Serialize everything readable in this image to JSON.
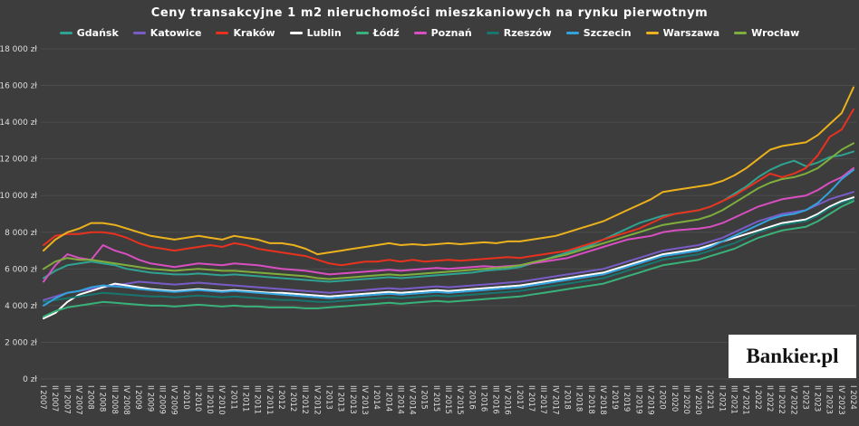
{
  "title": "Ceny transakcyjne 1 m2 nieruchomości mieszkaniowych na rynku pierwotnym",
  "branding": {
    "logo_text": "Bankier.pl"
  },
  "style": {
    "background": "#3d3d3d",
    "grid_color": "#4d4d4d",
    "axis_text_color": "#dedede"
  },
  "chart_data": {
    "type": "line",
    "title": "Ceny transakcyjne 1 m2 nieruchomości mieszkaniowych na rynku pierwotnym",
    "y_unit": "zł",
    "ylim": [
      0,
      18000
    ],
    "ytick_step": 2000,
    "ytick_labels": [
      "0 zł",
      "2 000 zł",
      "4 000 zł",
      "6 000 zł",
      "8 000 zł",
      "10 000 zł",
      "12 000 zł",
      "14 000 zł",
      "16 000 zł",
      "18 000 zł"
    ],
    "legend_position": "top",
    "grid": true,
    "categories": [
      "I 2007",
      "II 2007",
      "III 2007",
      "IV 2007",
      "I 2008",
      "II 2008",
      "III 2008",
      "IV 2008",
      "I 2009",
      "II 2009",
      "III 2009",
      "IV 2009",
      "I 2010",
      "II 2010",
      "III 2010",
      "IV 2010",
      "I 2011",
      "II 2011",
      "III 2011",
      "IV 2011",
      "I 2012",
      "II 2012",
      "III 2012",
      "IV 2012",
      "I 2013",
      "II 2013",
      "III 2013",
      "IV 2013",
      "I 2014",
      "II 2014",
      "III 2014",
      "IV 2014",
      "I 2015",
      "II 2015",
      "III 2015",
      "IV 2015",
      "I 2016",
      "II 2016",
      "III 2016",
      "IV 2016",
      "I 2017",
      "II 2017",
      "III 2017",
      "IV 2017",
      "I 2018",
      "II 2018",
      "III 2018",
      "IV 2018",
      "I 2019",
      "II 2019",
      "III 2019",
      "IV 2019",
      "I 2020",
      "II 2020",
      "III 2020",
      "IV 2020",
      "I 2021",
      "II 2021",
      "III 2021",
      "IV 2021",
      "I 2022",
      "II 2022",
      "III 2022",
      "IV 2022",
      "I 2023",
      "II 2023",
      "III 2023",
      "IV 2023",
      "I 2024"
    ],
    "series": [
      {
        "name": "Gdańsk",
        "color": "#2fa392",
        "values": [
          5500,
          5900,
          6200,
          6300,
          6400,
          6300,
          6200,
          6000,
          5900,
          5800,
          5750,
          5700,
          5700,
          5750,
          5700,
          5650,
          5700,
          5650,
          5600,
          5550,
          5500,
          5450,
          5400,
          5350,
          5300,
          5350,
          5400,
          5450,
          5500,
          5550,
          5500,
          5550,
          5600,
          5650,
          5700,
          5750,
          5800,
          5900,
          5950,
          6000,
          6100,
          6300,
          6500,
          6700,
          6900,
          7100,
          7300,
          7600,
          7900,
          8200,
          8500,
          8700,
          8900,
          9000,
          9100,
          9200,
          9400,
          9700,
          10100,
          10500,
          11000,
          11400,
          11700,
          11900,
          11600,
          11800,
          12100,
          12200,
          12400
        ]
      },
      {
        "name": "Katowice",
        "color": "#7a5cc9",
        "values": [
          4300,
          4500,
          4700,
          4800,
          4900,
          5000,
          5100,
          5200,
          5300,
          5250,
          5200,
          5150,
          5200,
          5250,
          5200,
          5150,
          5100,
          5050,
          5000,
          4950,
          4900,
          4850,
          4800,
          4750,
          4700,
          4750,
          4800,
          4850,
          4900,
          4950,
          4900,
          4950,
          5000,
          5050,
          5000,
          5050,
          5100,
          5150,
          5200,
          5250,
          5300,
          5400,
          5500,
          5600,
          5700,
          5800,
          5900,
          6000,
          6200,
          6400,
          6600,
          6800,
          7000,
          7100,
          7200,
          7300,
          7500,
          7700,
          8000,
          8300,
          8600,
          8800,
          9000,
          9100,
          9200,
          9500,
          9800,
          10000,
          10200
        ]
      },
      {
        "name": "Kraków",
        "color": "#e8321e",
        "values": [
          7300,
          7800,
          7900,
          7900,
          8000,
          8000,
          7900,
          7700,
          7400,
          7200,
          7100,
          7000,
          7100,
          7200,
          7300,
          7200,
          7400,
          7300,
          7100,
          7000,
          6900,
          6800,
          6700,
          6500,
          6300,
          6200,
          6300,
          6400,
          6400,
          6500,
          6400,
          6500,
          6400,
          6450,
          6500,
          6450,
          6500,
          6550,
          6600,
          6650,
          6600,
          6700,
          6800,
          6900,
          7000,
          7200,
          7400,
          7600,
          7800,
          8000,
          8200,
          8500,
          8800,
          9000,
          9100,
          9200,
          9400,
          9700,
          10000,
          10400,
          10800,
          11200,
          11000,
          11200,
          11500,
          12200,
          13200,
          13600,
          14700
        ]
      },
      {
        "name": "Lublin",
        "color": "#ffffff",
        "values": [
          3300,
          3600,
          4200,
          4600,
          4800,
          5000,
          5200,
          5100,
          5000,
          4900,
          4850,
          4800,
          4850,
          4900,
          4850,
          4800,
          4850,
          4800,
          4750,
          4700,
          4700,
          4650,
          4600,
          4550,
          4500,
          4550,
          4600,
          4650,
          4700,
          4750,
          4700,
          4750,
          4800,
          4850,
          4800,
          4850,
          4900,
          4950,
          5000,
          5050,
          5100,
          5200,
          5300,
          5400,
          5500,
          5600,
          5700,
          5800,
          6000,
          6200,
          6400,
          6600,
          6800,
          6900,
          7000,
          7100,
          7300,
          7500,
          7700,
          7900,
          8100,
          8300,
          8500,
          8600,
          8700,
          9000,
          9400,
          9700,
          9900
        ]
      },
      {
        "name": "Łódź",
        "color": "#39b27a",
        "values": [
          3400,
          3700,
          3900,
          4000,
          4100,
          4200,
          4150,
          4100,
          4050,
          4000,
          4000,
          3950,
          4000,
          4050,
          4000,
          3950,
          4000,
          3950,
          3950,
          3900,
          3900,
          3900,
          3850,
          3850,
          3900,
          3950,
          4000,
          4050,
          4100,
          4150,
          4100,
          4150,
          4200,
          4250,
          4200,
          4250,
          4300,
          4350,
          4400,
          4450,
          4500,
          4600,
          4700,
          4800,
          4900,
          5000,
          5100,
          5200,
          5400,
          5600,
          5800,
          6000,
          6200,
          6300,
          6400,
          6500,
          6700,
          6900,
          7100,
          7400,
          7700,
          7900,
          8100,
          8200,
          8300,
          8600,
          9000,
          9400,
          9700
        ]
      },
      {
        "name": "Poznań",
        "color": "#d94fc2",
        "values": [
          5300,
          6200,
          6800,
          6600,
          6500,
          7300,
          7000,
          6800,
          6500,
          6300,
          6200,
          6100,
          6200,
          6300,
          6250,
          6200,
          6300,
          6250,
          6200,
          6100,
          6000,
          5950,
          5900,
          5800,
          5700,
          5750,
          5800,
          5850,
          5900,
          5950,
          5900,
          5950,
          6000,
          6050,
          6000,
          6050,
          6100,
          6150,
          6100,
          6150,
          6200,
          6300,
          6400,
          6500,
          6600,
          6800,
          7000,
          7200,
          7400,
          7600,
          7700,
          7800,
          8000,
          8100,
          8150,
          8200,
          8300,
          8500,
          8800,
          9100,
          9400,
          9600,
          9800,
          9900,
          10000,
          10300,
          10700,
          11000,
          11500
        ]
      },
      {
        "name": "Rzeszów",
        "color": "#17766e",
        "values": [
          4200,
          4300,
          4400,
          4500,
          4600,
          4700,
          4650,
          4600,
          4550,
          4500,
          4500,
          4450,
          4500,
          4550,
          4500,
          4450,
          4500,
          4450,
          4400,
          4350,
          4300,
          4300,
          4250,
          4200,
          4200,
          4250,
          4300,
          4350,
          4400,
          4450,
          4400,
          4450,
          4500,
          4550,
          4500,
          4550,
          4600,
          4650,
          4700,
          4750,
          4800,
          4900,
          5000,
          5100,
          5200,
          5300,
          5400,
          5500,
          5700,
          5900,
          6100,
          6300,
          6500,
          6600,
          6700,
          6800,
          7000,
          7200,
          7400,
          7700,
          8000,
          8200,
          8400,
          8500,
          8600,
          8900,
          9300,
          9600,
          9800
        ]
      },
      {
        "name": "Szczecin",
        "color": "#33a3dc",
        "values": [
          4000,
          4400,
          4700,
          4800,
          5000,
          5100,
          5050,
          5000,
          4900,
          4850,
          4800,
          4750,
          4800,
          4850,
          4800,
          4750,
          4800,
          4750,
          4700,
          4650,
          4600,
          4550,
          4500,
          4450,
          4400,
          4450,
          4500,
          4550,
          4600,
          4650,
          4600,
          4650,
          4700,
          4750,
          4700,
          4750,
          4800,
          4850,
          4900,
          4950,
          5000,
          5100,
          5200,
          5300,
          5400,
          5500,
          5600,
          5700,
          5900,
          6100,
          6300,
          6500,
          6700,
          6800,
          6900,
          7000,
          7200,
          7500,
          7800,
          8100,
          8400,
          8700,
          8900,
          9000,
          9200,
          9600,
          10200,
          10900,
          11400
        ]
      },
      {
        "name": "Warszawa",
        "color": "#ecb21d",
        "values": [
          7000,
          7600,
          8000,
          8200,
          8500,
          8500,
          8400,
          8200,
          8000,
          7800,
          7700,
          7600,
          7700,
          7800,
          7700,
          7600,
          7800,
          7700,
          7600,
          7400,
          7400,
          7300,
          7100,
          6800,
          6900,
          7000,
          7100,
          7200,
          7300,
          7400,
          7300,
          7350,
          7300,
          7350,
          7400,
          7350,
          7400,
          7450,
          7400,
          7500,
          7500,
          7600,
          7700,
          7800,
          8000,
          8200,
          8400,
          8600,
          8900,
          9200,
          9500,
          9800,
          10200,
          10300,
          10400,
          10500,
          10600,
          10800,
          11100,
          11500,
          12000,
          12500,
          12700,
          12800,
          12900,
          13300,
          13900,
          14500,
          15900
        ]
      },
      {
        "name": "Wrocław",
        "color": "#7fae3d",
        "values": [
          6000,
          6400,
          6600,
          6500,
          6500,
          6400,
          6300,
          6200,
          6100,
          6000,
          5950,
          5900,
          5950,
          6000,
          5950,
          5900,
          5900,
          5850,
          5800,
          5750,
          5700,
          5650,
          5600,
          5500,
          5450,
          5500,
          5550,
          5600,
          5650,
          5700,
          5650,
          5700,
          5750,
          5800,
          5850,
          5900,
          5950,
          6000,
          6050,
          6100,
          6200,
          6350,
          6500,
          6650,
          6800,
          7000,
          7200,
          7400,
          7600,
          7800,
          8000,
          8200,
          8400,
          8500,
          8600,
          8700,
          8900,
          9200,
          9600,
          10000,
          10400,
          10700,
          10900,
          11000,
          11200,
          11500,
          12000,
          12500,
          12850
        ]
      }
    ]
  }
}
